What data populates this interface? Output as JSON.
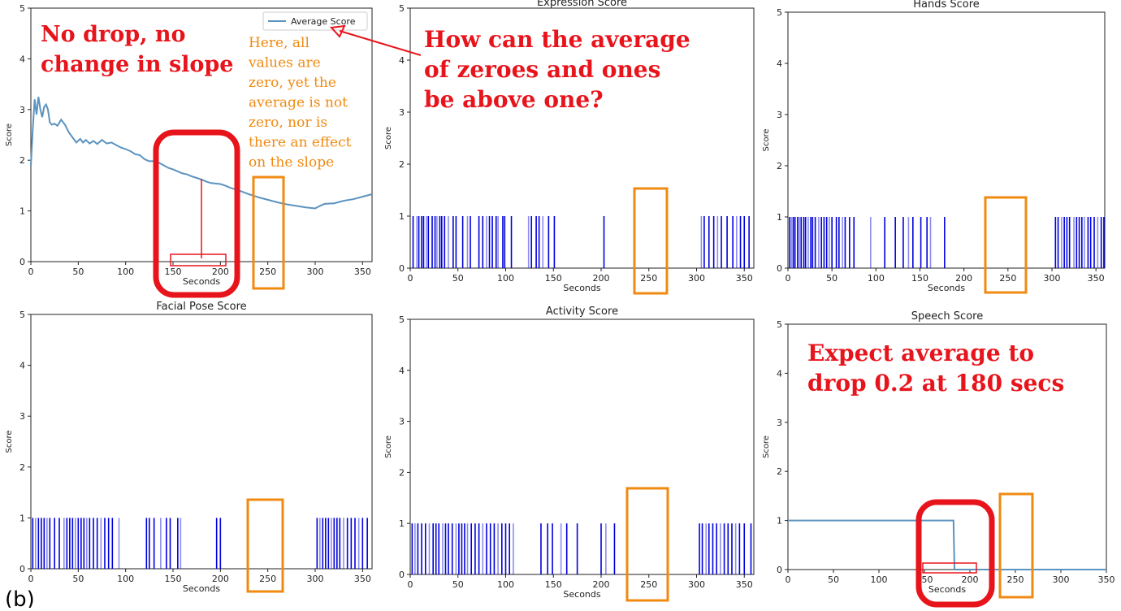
{
  "figure_label": "(b)",
  "colors": {
    "line": "#5b93bf",
    "spike": "#0000dd",
    "red_annotation": "#e8141c",
    "orange_annotation": "#f08a10"
  },
  "chart_data": [
    {
      "id": "average",
      "type": "line",
      "title": "",
      "xlabel": "Seconds",
      "ylabel": "Score",
      "xlim": [
        0,
        360
      ],
      "ylim": [
        0,
        5
      ],
      "xticks": [
        0,
        50,
        100,
        150,
        200,
        250,
        300,
        350
      ],
      "yticks": [
        0,
        1,
        2,
        3,
        4,
        5
      ],
      "legend": {
        "position": "top-right",
        "entries": [
          "Average Score"
        ]
      },
      "series": [
        {
          "name": "Average Score",
          "x": [
            0,
            2,
            4,
            6,
            8,
            10,
            12,
            14,
            16,
            18,
            20,
            22,
            25,
            28,
            32,
            36,
            40,
            44,
            48,
            52,
            55,
            58,
            62,
            66,
            70,
            75,
            80,
            85,
            90,
            95,
            100,
            105,
            110,
            115,
            120,
            125,
            130,
            135,
            140,
            145,
            150,
            155,
            160,
            165,
            170,
            175,
            180,
            185,
            190,
            195,
            200,
            205,
            210,
            220,
            230,
            240,
            250,
            260,
            270,
            280,
            290,
            300,
            305,
            310,
            320,
            330,
            340,
            350,
            360
          ],
          "values": [
            1.9,
            2.6,
            3.2,
            2.9,
            3.25,
            3.0,
            2.85,
            3.05,
            3.1,
            3.0,
            2.75,
            2.7,
            2.72,
            2.68,
            2.8,
            2.7,
            2.55,
            2.45,
            2.35,
            2.42,
            2.35,
            2.4,
            2.33,
            2.38,
            2.32,
            2.4,
            2.33,
            2.35,
            2.3,
            2.25,
            2.22,
            2.18,
            2.12,
            2.1,
            2.02,
            1.98,
            1.98,
            1.95,
            1.9,
            1.85,
            1.82,
            1.78,
            1.74,
            1.72,
            1.68,
            1.65,
            1.62,
            1.58,
            1.55,
            1.54,
            1.53,
            1.5,
            1.46,
            1.4,
            1.33,
            1.27,
            1.22,
            1.17,
            1.13,
            1.1,
            1.07,
            1.05,
            1.1,
            1.14,
            1.15,
            1.2,
            1.23,
            1.28,
            1.33
          ]
        }
      ]
    },
    {
      "id": "expression",
      "type": "bar",
      "title": "Expression Score",
      "xlabel": "Seconds",
      "ylabel": "Score",
      "xlim": [
        0,
        360
      ],
      "ylim": [
        0,
        5
      ],
      "xticks": [
        0,
        50,
        100,
        150,
        200,
        250,
        300,
        350
      ],
      "yticks": [
        0,
        1,
        2,
        3,
        4,
        5
      ],
      "spike_value": 1,
      "spikes": [
        3,
        7,
        9,
        12,
        14,
        17,
        19,
        23,
        26,
        28,
        31,
        33,
        36,
        40,
        45,
        48,
        55,
        60,
        63,
        72,
        76,
        80,
        83,
        86,
        90,
        92,
        97,
        99,
        106,
        124,
        127,
        132,
        135,
        139,
        145,
        151,
        203,
        305,
        308,
        313,
        318,
        322,
        326,
        332,
        338,
        342,
        346,
        350,
        355
      ]
    },
    {
      "id": "hands",
      "type": "bar",
      "title": "Hands Score",
      "xlabel": "Seconds",
      "ylabel": "Score",
      "xlim": [
        0,
        360
      ],
      "ylim": [
        0,
        5
      ],
      "xticks": [
        0,
        50,
        100,
        150,
        200,
        250,
        300,
        350
      ],
      "yticks": [
        0,
        1,
        2,
        3,
        4,
        5
      ],
      "spike_value": 1,
      "spikes": [
        2,
        4,
        6,
        8,
        11,
        13,
        15,
        18,
        20,
        23,
        26,
        28,
        31,
        35,
        38,
        41,
        44,
        47,
        50,
        55,
        58,
        62,
        65,
        70,
        75,
        94,
        110,
        122,
        131,
        137,
        142,
        151,
        158,
        162,
        178,
        304,
        307,
        311,
        314,
        317,
        320,
        325,
        328,
        331,
        334,
        337,
        341,
        344,
        348,
        352,
        356,
        359
      ]
    },
    {
      "id": "facial_pose",
      "type": "bar",
      "title": "Facial Pose Score",
      "xlabel": "Seconds",
      "ylabel": "Score",
      "xlim": [
        0,
        360
      ],
      "ylim": [
        0,
        5
      ],
      "xticks": [
        0,
        50,
        100,
        150,
        200,
        250,
        300,
        350
      ],
      "yticks": [
        0,
        1,
        2,
        3,
        4,
        5
      ],
      "spike_value": 1,
      "spikes": [
        2,
        5,
        8,
        11,
        14,
        17,
        20,
        25,
        30,
        35,
        38,
        41,
        44,
        47,
        50,
        53,
        56,
        59,
        62,
        66,
        70,
        74,
        78,
        82,
        86,
        93,
        122,
        125,
        130,
        137,
        143,
        147,
        155,
        158,
        196,
        200,
        302,
        305,
        308,
        311,
        314,
        317,
        320,
        323,
        326,
        330,
        334,
        338,
        342,
        346,
        350,
        355
      ]
    },
    {
      "id": "activity",
      "type": "bar",
      "title": "Activity Score",
      "xlabel": "Seconds",
      "ylabel": "Score",
      "xlim": [
        0,
        360
      ],
      "ylim": [
        0,
        5
      ],
      "xticks": [
        0,
        50,
        100,
        150,
        200,
        250,
        300,
        350
      ],
      "yticks": [
        0,
        1,
        2,
        3,
        4,
        5
      ],
      "spike_value": 1,
      "spikes": [
        2,
        5,
        8,
        12,
        16,
        20,
        24,
        27,
        30,
        34,
        37,
        40,
        44,
        48,
        51,
        54,
        57,
        60,
        64,
        68,
        72,
        76,
        80,
        84,
        88,
        92,
        96,
        100,
        104,
        108,
        137,
        144,
        149,
        158,
        164,
        175,
        200,
        205,
        214,
        303,
        306,
        310,
        313,
        317,
        321,
        325,
        329,
        333,
        337,
        341,
        345,
        350,
        357
      ]
    },
    {
      "id": "speech",
      "type": "line",
      "title": "Speech Score",
      "xlabel": "Seconds",
      "ylabel": "Score",
      "xlim": [
        0,
        350
      ],
      "ylim": [
        0,
        5
      ],
      "xticks": [
        0,
        50,
        100,
        150,
        200,
        250,
        300,
        350
      ],
      "yticks": [
        0,
        1,
        2,
        3,
        4,
        5
      ],
      "series": [
        {
          "name": "",
          "x": [
            0,
            182,
            183,
            350
          ],
          "values": [
            1,
            1,
            0,
            0
          ]
        }
      ]
    }
  ],
  "annotations": {
    "no_drop": "No drop, no\nchange in slope",
    "here_all_zero": "Here, all\nvalues are\nzero, yet the\naverage is not\nzero, nor is\nthere an effect\non the slope",
    "how_can": "How can the average\nof zeroes and ones\nbe above one?",
    "expect": "Expect average to\ndrop 0.2 at 180 secs"
  }
}
